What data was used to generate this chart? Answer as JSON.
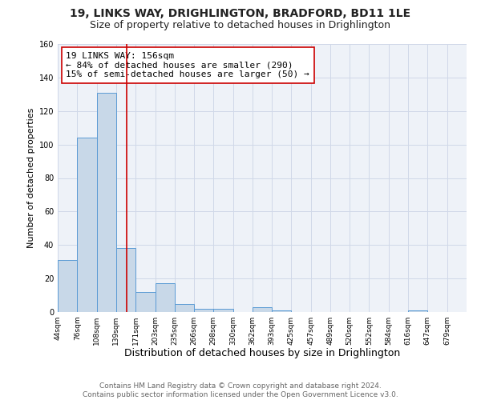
{
  "title": "19, LINKS WAY, DRIGHLINGTON, BRADFORD, BD11 1LE",
  "subtitle": "Size of property relative to detached houses in Drighlington",
  "xlabel": "Distribution of detached houses by size in Drighlington",
  "ylabel": "Number of detached properties",
  "bar_left_edges": [
    44,
    76,
    108,
    139,
    171,
    203,
    235,
    266,
    298,
    330,
    362,
    393,
    425,
    457,
    489,
    520,
    552,
    584,
    616,
    647
  ],
  "bar_heights": [
    31,
    104,
    131,
    38,
    12,
    17,
    5,
    2,
    2,
    0,
    3,
    1,
    0,
    0,
    0,
    0,
    0,
    0,
    1,
    0
  ],
  "bar_color": "#c8d8e8",
  "bar_edge_color": "#5b9bd5",
  "vline_x": 156,
  "vline_color": "#cc0000",
  "annotation_line1": "19 LINKS WAY: 156sqm",
  "annotation_line2": "← 84% of detached houses are smaller (290)",
  "annotation_line3": "15% of semi-detached houses are larger (50) →",
  "annotation_box_color": "#ffffff",
  "annotation_box_edge_color": "#cc0000",
  "xlim_left": 44,
  "xlim_right": 711,
  "ylim": [
    0,
    160
  ],
  "tick_labels": [
    "44sqm",
    "76sqm",
    "108sqm",
    "139sqm",
    "171sqm",
    "203sqm",
    "235sqm",
    "266sqm",
    "298sqm",
    "330sqm",
    "362sqm",
    "393sqm",
    "425sqm",
    "457sqm",
    "489sqm",
    "520sqm",
    "552sqm",
    "584sqm",
    "616sqm",
    "647sqm",
    "679sqm"
  ],
  "tick_positions": [
    44,
    76,
    108,
    139,
    171,
    203,
    235,
    266,
    298,
    330,
    362,
    393,
    425,
    457,
    489,
    520,
    552,
    584,
    616,
    647,
    679
  ],
  "grid_color": "#d0d8e8",
  "background_color": "#eef2f8",
  "fig_background_color": "#ffffff",
  "footer_text": "Contains HM Land Registry data © Crown copyright and database right 2024.\nContains public sector information licensed under the Open Government Licence v3.0.",
  "title_fontsize": 10,
  "subtitle_fontsize": 9,
  "xlabel_fontsize": 9,
  "ylabel_fontsize": 8,
  "tick_fontsize": 6.5,
  "annotation_fontsize": 8,
  "footer_fontsize": 6.5
}
